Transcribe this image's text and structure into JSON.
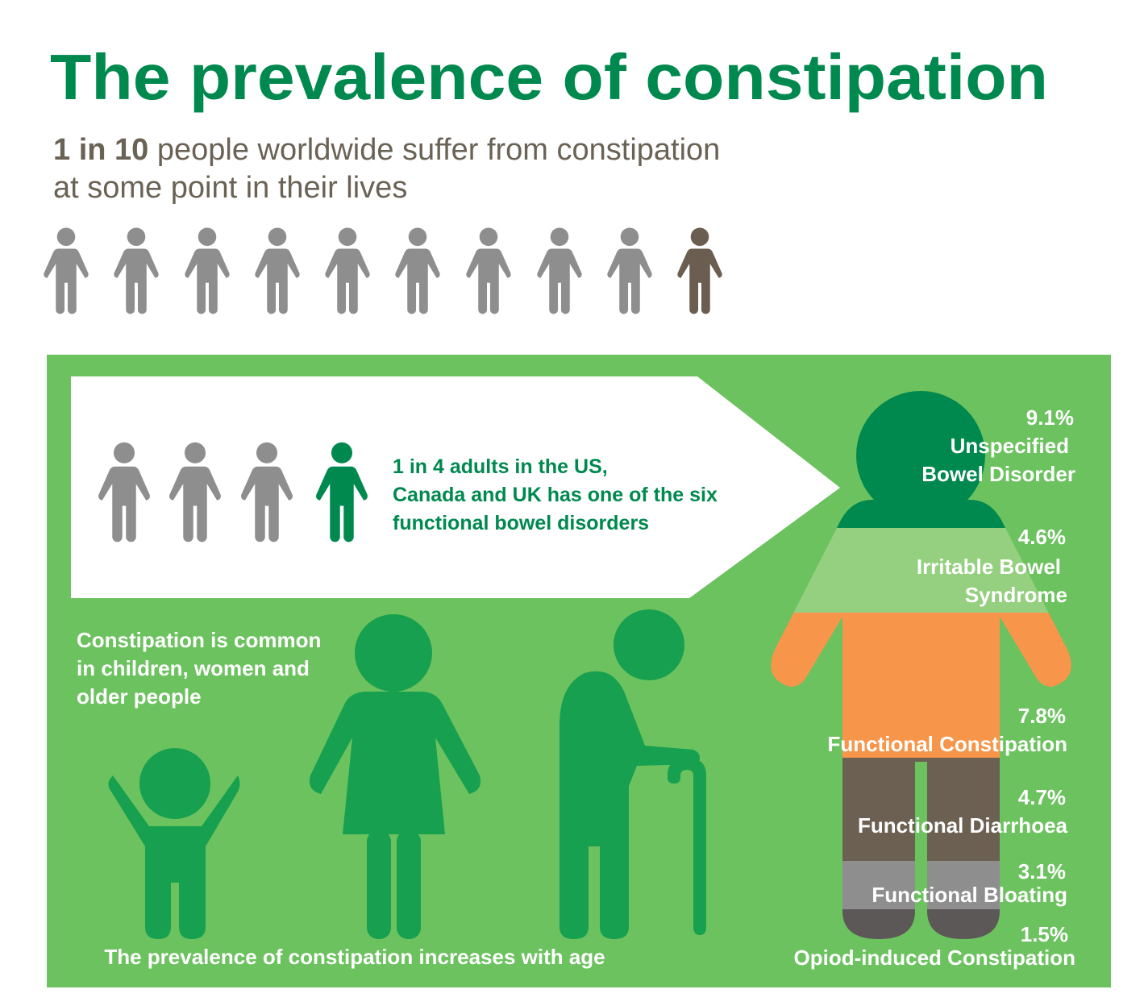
{
  "title": "The prevalence of constipation",
  "subtitle": {
    "highlight": "1 in 10",
    "line1": "people worldwide suffer from constipation",
    "line2": "at some point in their lives"
  },
  "callout": [
    "1 in 4 adults in the US,",
    "Canada and UK has one of the six",
    "functional bowel disorders"
  ],
  "note": [
    "Constipation is common",
    "in children, women and",
    "older people"
  ],
  "footer": "The prevalence of constipation increases with age",
  "disorders": [
    {
      "value": "9.1%",
      "label": [
        "Unspecified",
        "Bowel Disorder"
      ]
    },
    {
      "value": "4.6%",
      "label": [
        "Irritable Bowel",
        "Syndrome"
      ]
    },
    {
      "value": "7.8%",
      "label": [
        "Functional Constipation"
      ]
    },
    {
      "value": "4.7%",
      "label": [
        "Functional Diarrhoea"
      ]
    },
    {
      "value": "3.1%",
      "label": [
        "Functional Bloating"
      ]
    },
    {
      "value": "1.5%",
      "label": [
        "Opiod-induced Constipation"
      ]
    }
  ]
}
